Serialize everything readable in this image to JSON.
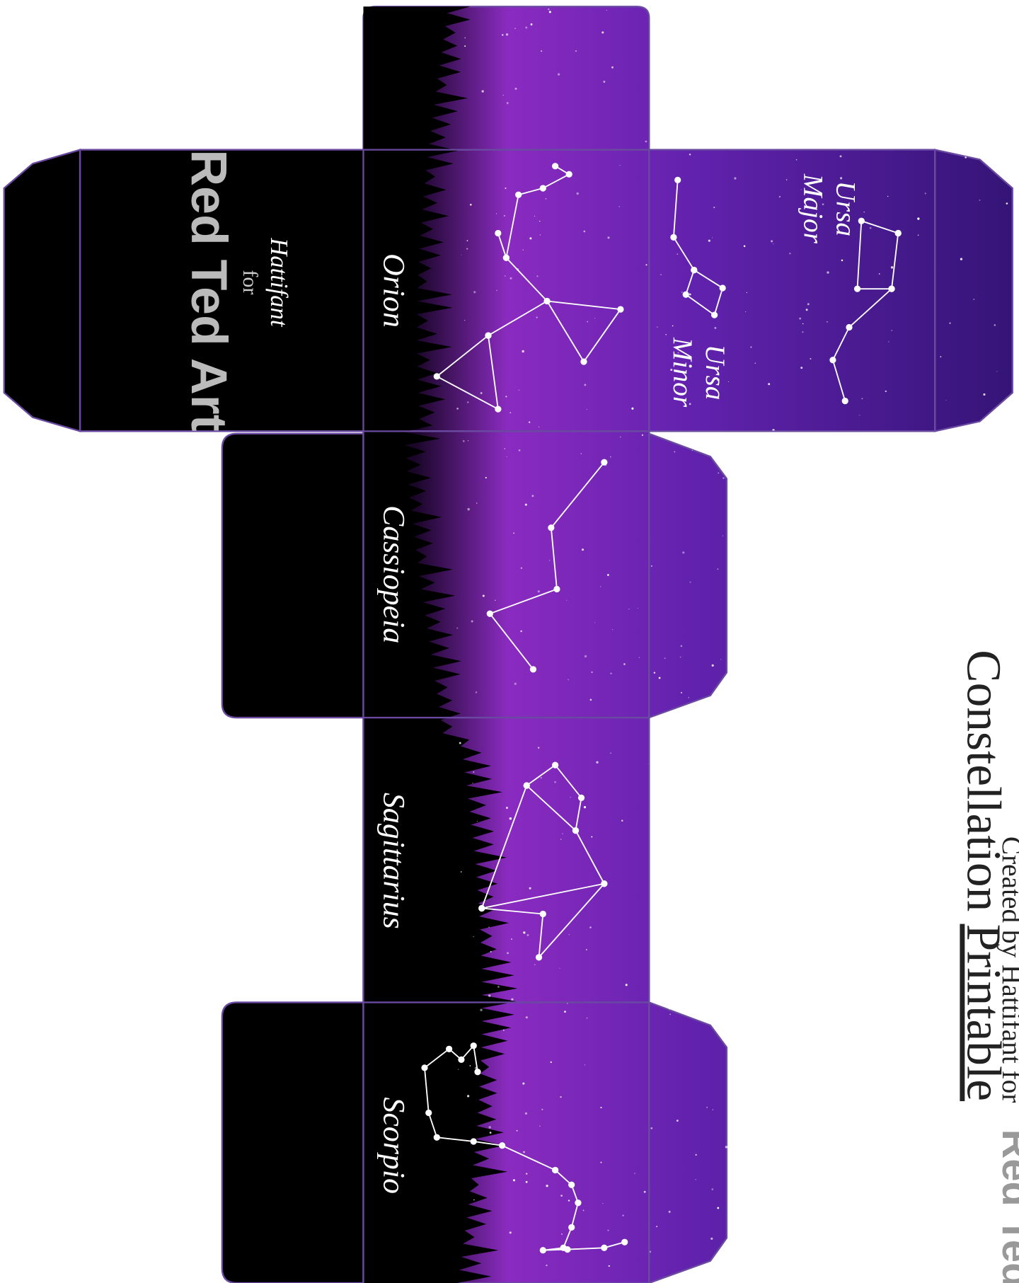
{
  "title": {
    "text": "Constellation",
    "underlined": "Printable"
  },
  "faces": {
    "ursa_major": [
      "Ursa",
      "Major"
    ],
    "ursa_minor": [
      "Ursa",
      "Minor"
    ],
    "orion": "Orion",
    "cassiopeia": "Cassiopeia",
    "sagittarius": "Sagittarius",
    "scorpio": "Scorpio",
    "brand_face": {
      "author": "Hattifant",
      "joiner": "for",
      "brand": "Red Ted Art"
    }
  },
  "credit": {
    "text": "Created by Hattifant for",
    "brand": "Red Ted"
  }
}
